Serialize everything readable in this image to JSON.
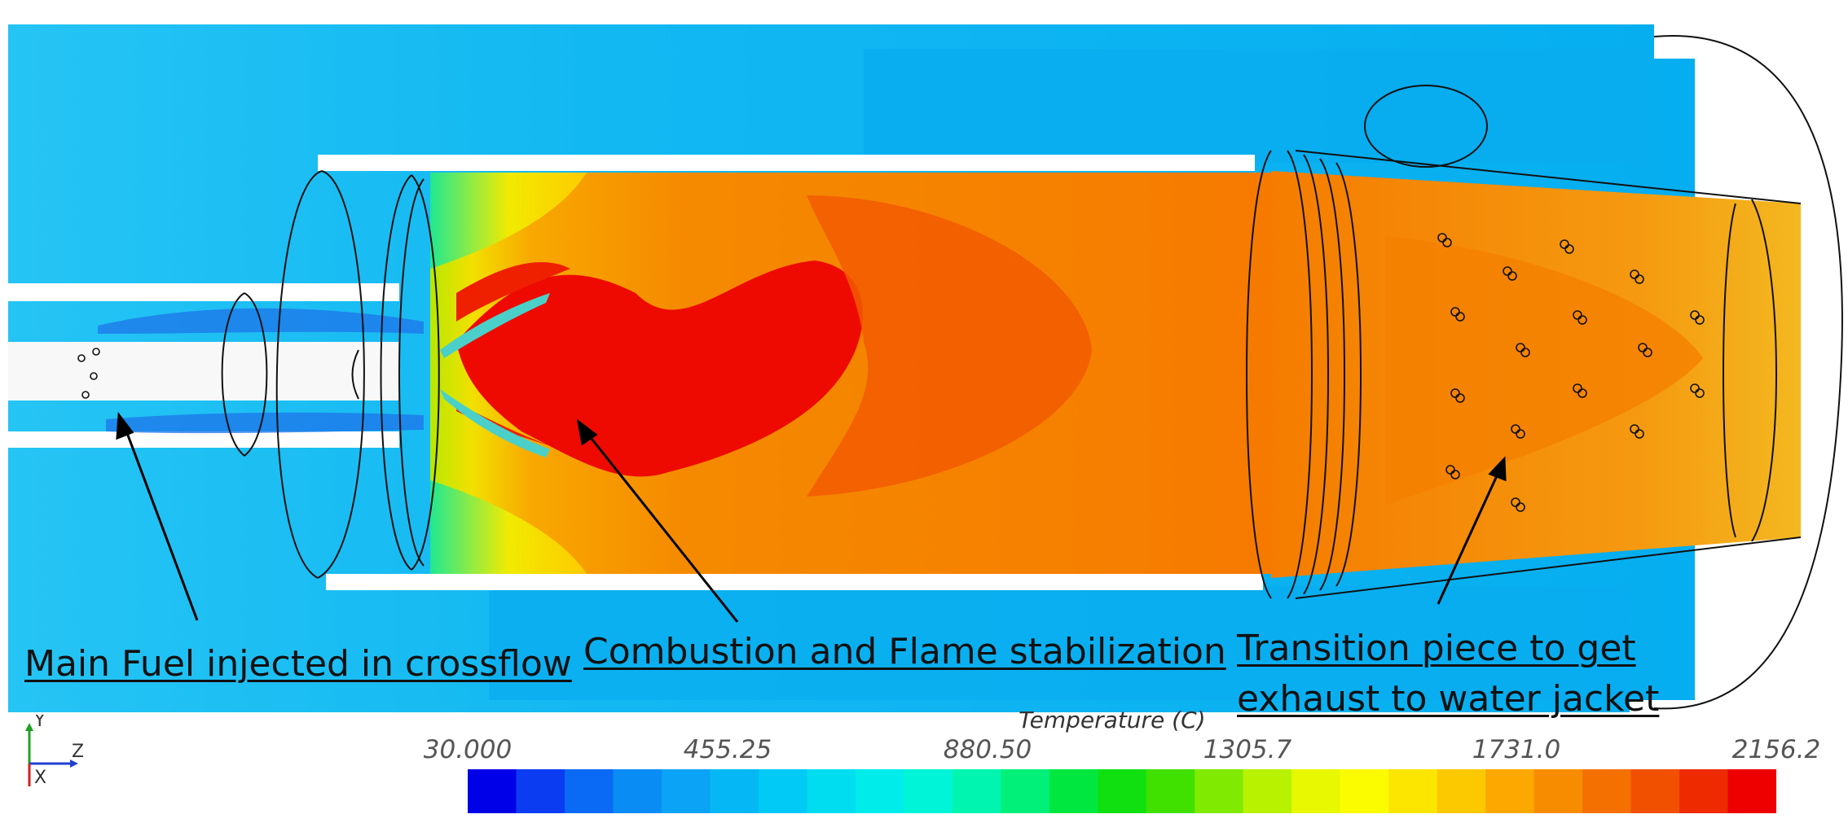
{
  "annotations": {
    "fuel": "Main Fuel injected in crossflow",
    "combustion": "Combustion and Flame stabilization",
    "transition": [
      "Transition piece to get",
      "exhaust to water jacket"
    ]
  },
  "legend": {
    "title": "Temperature (C)",
    "ticks": [
      "30.000",
      "455.25",
      "880.50",
      "1305.7",
      "1731.0",
      "2156.2"
    ],
    "colors": [
      "#0000e8",
      "#0b3cf2",
      "#0a6af5",
      "#0a8cf5",
      "#0aa3f5",
      "#05b8f5",
      "#00caf5",
      "#00dcf0",
      "#00ecea",
      "#00f5d8",
      "#00f5b0",
      "#00f07a",
      "#00e840",
      "#10e010",
      "#40e000",
      "#80ea00",
      "#b8f200",
      "#e8f800",
      "#fcfc00",
      "#fce600",
      "#fcc800",
      "#fca800",
      "#f88c00",
      "#f47000",
      "#f05000",
      "#ee2a00",
      "#ee0000"
    ]
  },
  "axes": {
    "y": "Y",
    "z": "Z",
    "x": "X"
  },
  "colors": {
    "coolant": "#07b0f0",
    "coolant_light": "#3cc6f5",
    "hot_core": "#ee0a00",
    "combustor": "#f67e00",
    "transition": "#f5a020"
  }
}
